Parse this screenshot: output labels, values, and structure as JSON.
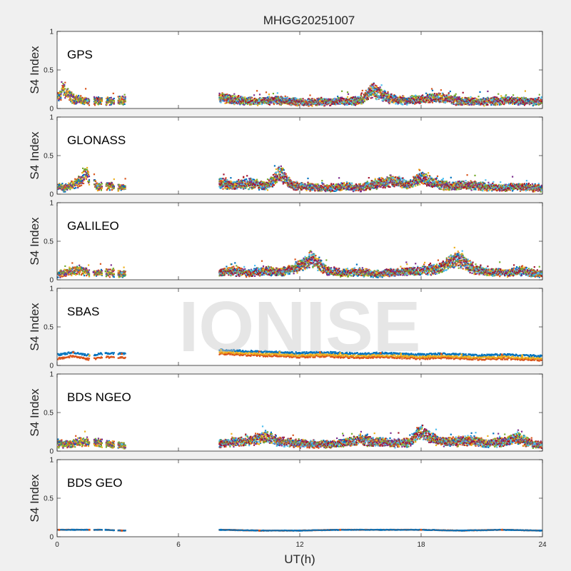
{
  "figure": {
    "title": "MHGG20251007",
    "xlabel": "UT(h)",
    "watermark": "IONISE",
    "background_color": "#f0f0f0",
    "axes_background_color": "#ffffff"
  },
  "chart_data": {
    "type": "scatter",
    "layout": "6 stacked panels, shared x-axis",
    "xlim": [
      0,
      24
    ],
    "xticks": [
      0,
      6,
      12,
      18,
      24
    ],
    "ylim": [
      0,
      1
    ],
    "yticks": [
      0,
      0.5,
      1
    ],
    "ylabel": "S4 Index",
    "colors": [
      "#0072BD",
      "#D95319",
      "#EDB120",
      "#7E2F8E",
      "#77AC30",
      "#4DBEEE",
      "#A2142F"
    ],
    "data_gap_hours": [
      3.5,
      8.0
    ],
    "early_data_hours": [
      0,
      3.4
    ],
    "panels": [
      {
        "name": "GPS",
        "x": [
          0.1,
          0.3,
          0.5,
          0.8,
          1.2,
          1.5,
          2.0,
          2.5,
          3.2,
          8.1,
          8.6,
          9.3,
          10.0,
          10.7,
          11.5,
          12.3,
          13.0,
          14.0,
          15.0,
          15.6,
          16.5,
          17.3,
          18.0,
          19.0,
          19.8,
          20.6,
          21.5,
          22.4,
          23.3,
          23.9
        ],
        "y": [
          0.17,
          0.28,
          0.22,
          0.15,
          0.12,
          0.1,
          0.13,
          0.11,
          0.12,
          0.17,
          0.13,
          0.12,
          0.1,
          0.13,
          0.11,
          0.09,
          0.1,
          0.11,
          0.12,
          0.28,
          0.15,
          0.12,
          0.14,
          0.16,
          0.12,
          0.1,
          0.11,
          0.13,
          0.1,
          0.11
        ]
      },
      {
        "name": "GLONASS",
        "x": [
          0.1,
          0.4,
          0.8,
          1.2,
          1.4,
          2.0,
          2.6,
          3.3,
          8.1,
          8.8,
          9.6,
          10.4,
          11.0,
          11.6,
          12.5,
          13.4,
          14.2,
          15.0,
          15.8,
          16.6,
          17.4,
          18.0,
          18.8,
          19.6,
          20.4,
          21.2,
          22.1,
          23.0,
          23.9
        ],
        "y": [
          0.12,
          0.09,
          0.15,
          0.22,
          0.32,
          0.11,
          0.13,
          0.1,
          0.17,
          0.13,
          0.16,
          0.12,
          0.33,
          0.14,
          0.11,
          0.09,
          0.12,
          0.1,
          0.16,
          0.21,
          0.14,
          0.24,
          0.15,
          0.12,
          0.14,
          0.11,
          0.1,
          0.11,
          0.09
        ]
      },
      {
        "name": "GALILEO",
        "x": [
          0.1,
          0.5,
          1.1,
          1.8,
          2.4,
          3.2,
          8.1,
          8.8,
          9.5,
          10.2,
          11.0,
          11.8,
          12.6,
          13.4,
          14.2,
          15.0,
          15.8,
          16.6,
          17.4,
          18.2,
          19.0,
          19.8,
          20.6,
          21.4,
          22.2,
          23.0,
          23.8
        ],
        "y": [
          0.09,
          0.12,
          0.15,
          0.1,
          0.11,
          0.09,
          0.11,
          0.13,
          0.1,
          0.14,
          0.12,
          0.18,
          0.32,
          0.13,
          0.11,
          0.12,
          0.09,
          0.11,
          0.12,
          0.14,
          0.18,
          0.33,
          0.16,
          0.12,
          0.1,
          0.14,
          0.09
        ]
      },
      {
        "name": "SBAS",
        "x": [
          0.1,
          0.8,
          1.6,
          2.4,
          3.2,
          8.1,
          9.0,
          10.0,
          11.0,
          12.0,
          13.0,
          14.0,
          15.0,
          16.0,
          17.0,
          18.0,
          19.0,
          20.0,
          21.0,
          22.0,
          23.0,
          23.9
        ],
        "y": [
          0.14,
          0.17,
          0.13,
          0.16,
          0.15,
          0.2,
          0.19,
          0.18,
          0.17,
          0.16,
          0.17,
          0.16,
          0.15,
          0.16,
          0.15,
          0.14,
          0.15,
          0.14,
          0.13,
          0.14,
          0.13,
          0.12
        ]
      },
      {
        "name": "BDS NGEO",
        "x": [
          0.1,
          0.6,
          1.2,
          1.9,
          2.5,
          3.2,
          8.1,
          8.8,
          9.6,
          10.3,
          11.0,
          11.8,
          12.6,
          13.4,
          14.2,
          15.0,
          15.8,
          16.6,
          17.4,
          18.0,
          18.8,
          19.6,
          20.4,
          21.2,
          22.0,
          22.8,
          23.6
        ],
        "y": [
          0.12,
          0.1,
          0.15,
          0.13,
          0.11,
          0.09,
          0.12,
          0.14,
          0.16,
          0.22,
          0.15,
          0.12,
          0.11,
          0.1,
          0.12,
          0.17,
          0.14,
          0.12,
          0.13,
          0.31,
          0.15,
          0.14,
          0.17,
          0.12,
          0.14,
          0.19,
          0.1
        ]
      },
      {
        "name": "BDS GEO",
        "x": [
          0.1,
          0.8,
          1.6,
          2.4,
          3.2,
          8.1,
          10.0,
          12.0,
          14.0,
          16.0,
          18.0,
          20.0,
          22.0,
          23.9
        ],
        "y": [
          0.09,
          0.09,
          0.09,
          0.09,
          0.08,
          0.09,
          0.08,
          0.08,
          0.09,
          0.09,
          0.09,
          0.08,
          0.09,
          0.08
        ]
      }
    ]
  }
}
